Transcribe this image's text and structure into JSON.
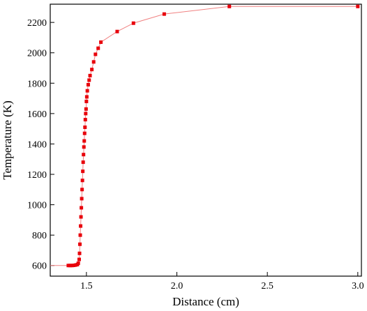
{
  "chart_data": {
    "type": "line",
    "title": "",
    "xlabel": "Distance (cm)",
    "ylabel": "Temperature (K)",
    "xlim": [
      1.3,
      3.02
    ],
    "ylim": [
      530,
      2320
    ],
    "x_ticks": [
      1.5,
      2.0,
      2.5,
      3.0
    ],
    "x_tick_labels": [
      "1.5",
      "2.0",
      "2.5",
      "3.0"
    ],
    "y_ticks": [
      600,
      800,
      1000,
      1200,
      1400,
      1600,
      1800,
      2000,
      2200
    ],
    "y_tick_labels": [
      "600",
      "800",
      "1000",
      "1200",
      "1400",
      "1600",
      "1800",
      "2000",
      "2200"
    ],
    "grid": false,
    "legend": "none",
    "series_color": "#e8000b",
    "line_color": "#f08080",
    "series": [
      {
        "x": [
          1.3,
          1.4,
          1.41,
          1.42,
          1.43,
          1.44,
          1.45,
          1.455,
          1.46,
          1.462,
          1.464,
          1.466,
          1.468,
          1.47,
          1.472,
          1.474,
          1.476,
          1.478,
          1.48,
          1.482,
          1.484,
          1.486,
          1.488,
          1.49,
          1.492,
          1.494,
          1.496,
          1.498,
          1.5,
          1.502,
          1.505,
          1.51,
          1.515,
          1.52,
          1.53,
          1.54,
          1.55,
          1.565,
          1.58,
          1.67,
          1.76,
          1.93,
          2.29,
          3.0
        ],
        "y": [
          600,
          600,
          600,
          600,
          601,
          603,
          606,
          615,
          640,
          680,
          740,
          800,
          860,
          920,
          980,
          1040,
          1100,
          1160,
          1220,
          1280,
          1330,
          1380,
          1420,
          1470,
          1510,
          1560,
          1600,
          1630,
          1680,
          1710,
          1750,
          1790,
          1820,
          1850,
          1890,
          1940,
          1990,
          2030,
          2070,
          2140,
          2195,
          2255,
          2305,
          2305
        ]
      }
    ]
  }
}
